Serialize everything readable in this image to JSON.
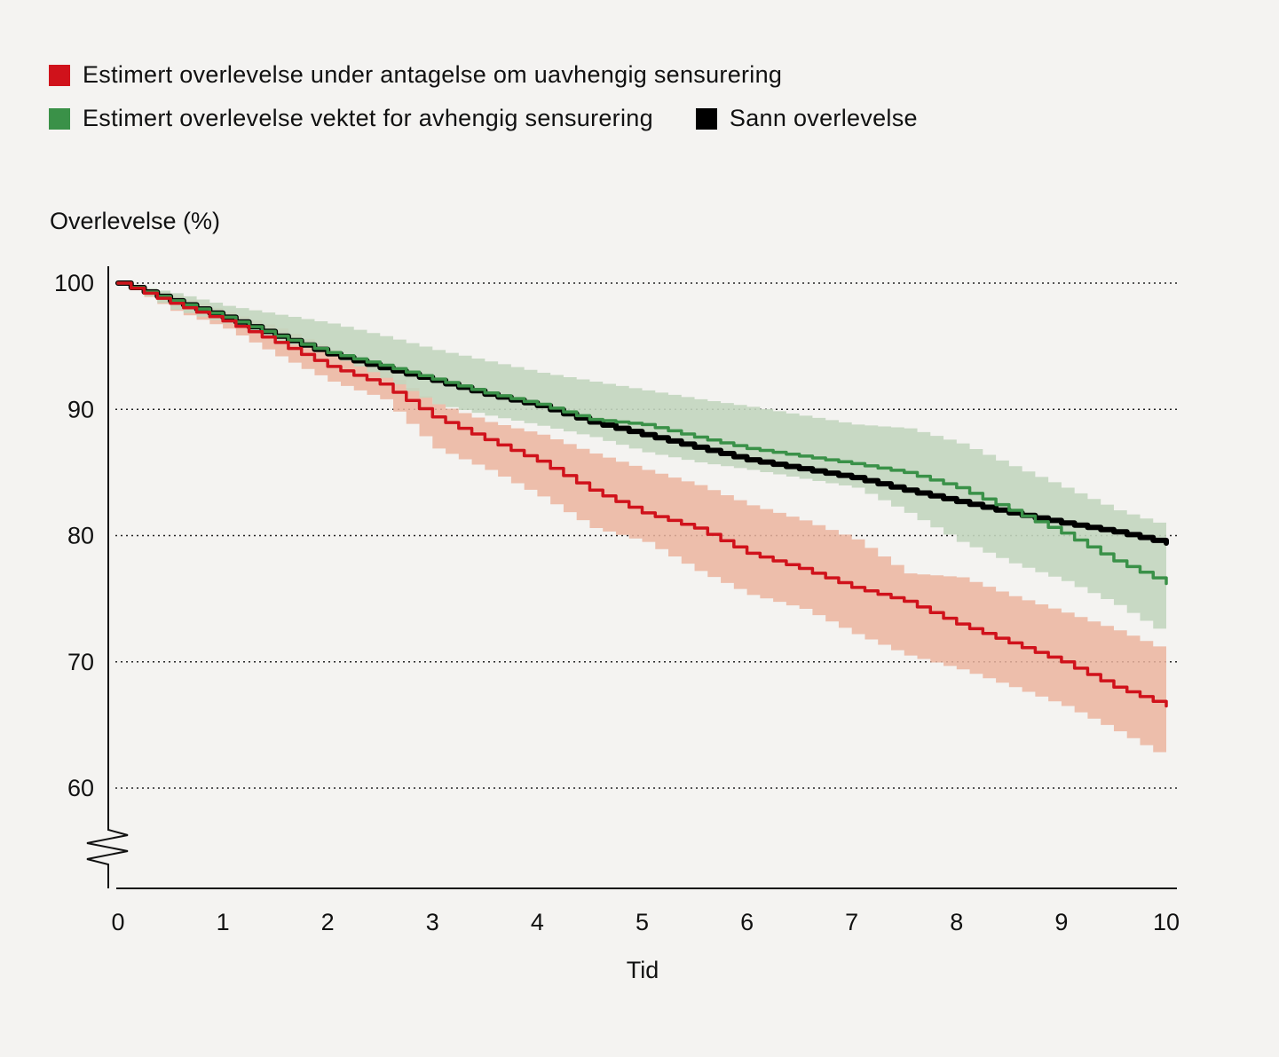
{
  "chart_data": {
    "type": "line",
    "title": "",
    "xlabel": "Tid",
    "ylabel": "Overlevelse (%)",
    "xlim": [
      0,
      10
    ],
    "ylim": [
      60,
      100
    ],
    "y_axis_break": true,
    "xticks": [
      "0",
      "1",
      "2",
      "3",
      "4",
      "5",
      "6",
      "7",
      "8",
      "9",
      "10"
    ],
    "yticks": [
      "100",
      "90",
      "80",
      "70",
      "60"
    ],
    "grid": "horizontal dotted",
    "legend_position": "top-left",
    "x": [
      0,
      0.5,
      1,
      1.5,
      2,
      2.5,
      3,
      3.5,
      4,
      4.5,
      5,
      5.5,
      6,
      6.5,
      7,
      7.5,
      8,
      8.5,
      9,
      9.5,
      10
    ],
    "series": [
      {
        "name": "Estimert overlevelse under antagelse om uavhengig sensurering",
        "color": "#d0121b",
        "band_color": "#ebb49f",
        "values": [
          100,
          98.4,
          97.0,
          95.3,
          93.4,
          92.0,
          89.4,
          87.6,
          85.9,
          83.6,
          81.8,
          80.6,
          78.6,
          77.4,
          75.9,
          74.8,
          73.0,
          71.5,
          70.0,
          68.0,
          66.5
        ],
        "upper": [
          100,
          99.0,
          97.7,
          96.4,
          94.7,
          93.0,
          90.4,
          89.0,
          88.0,
          86.5,
          85.2,
          84.0,
          82.4,
          81.2,
          79.7,
          77.0,
          76.7,
          75.2,
          73.9,
          72.5,
          70.8
        ],
        "lower": [
          100,
          97.8,
          96.4,
          94.2,
          92.2,
          90.8,
          86.9,
          85.2,
          83.1,
          80.6,
          79.5,
          77.2,
          75.3,
          74.2,
          72.2,
          70.5,
          69.4,
          68.0,
          66.5,
          64.5,
          62.3
        ]
      },
      {
        "name": "Estimert overlevelse vektet for avhengig sensurering",
        "color": "#3a9148",
        "band_color": "#c3d6bf",
        "values": [
          100,
          98.6,
          97.3,
          95.8,
          94.5,
          93.5,
          92.4,
          91.3,
          90.4,
          89.2,
          88.8,
          87.8,
          86.9,
          86.3,
          85.7,
          85.0,
          83.8,
          82.0,
          80.2,
          78.0,
          76.2
        ],
        "upper": [
          100,
          99.2,
          98.2,
          97.5,
          96.8,
          95.8,
          94.7,
          93.8,
          92.9,
          92.2,
          91.5,
          90.8,
          90.2,
          89.5,
          88.8,
          88.5,
          87.3,
          85.5,
          83.8,
          82.0,
          80.7
        ],
        "lower": [
          100,
          97.9,
          96.8,
          95.4,
          94.3,
          92.5,
          90.4,
          89.5,
          88.7,
          87.8,
          86.6,
          85.8,
          85.2,
          84.5,
          83.8,
          81.8,
          79.5,
          77.8,
          76.4,
          74.5,
          72.0
        ]
      },
      {
        "name": "Sann overlevelse",
        "color": "#000000",
        "values": [
          100,
          98.6,
          97.3,
          95.8,
          94.4,
          93.3,
          92.3,
          91.2,
          90.3,
          89.0,
          88.0,
          87.0,
          86.0,
          85.3,
          84.6,
          83.6,
          82.7,
          81.8,
          81.0,
          80.3,
          79.4
        ]
      }
    ]
  }
}
